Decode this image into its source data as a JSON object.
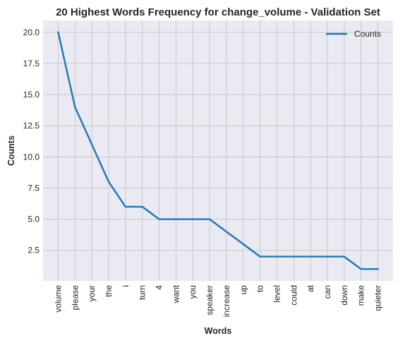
{
  "chart_data": {
    "type": "line",
    "title": "20 Highest Words Frequency for change_volume - Validation Set",
    "xlabel": "Words",
    "ylabel": "Counts",
    "categories": [
      "volume",
      "please",
      "your",
      "the",
      "i",
      "turn",
      "4",
      "want",
      "you",
      "speaker",
      "increase",
      "up",
      "to",
      "level",
      "could",
      "at",
      "can",
      "down",
      "make",
      "quieter"
    ],
    "series": [
      {
        "name": "Counts",
        "values": [
          20,
          14,
          11,
          8,
          6,
          6,
          5,
          5,
          5,
          5,
          4,
          3,
          2,
          2,
          2,
          2,
          2,
          2,
          1,
          1
        ],
        "color": "#1f77b4"
      }
    ],
    "yticks": [
      "2.5",
      "5.0",
      "7.5",
      "10.0",
      "12.5",
      "15.0",
      "17.5",
      "20.0"
    ],
    "ylim": [
      0.05,
      20.95
    ],
    "grid": true,
    "legend_position": "top-right",
    "colors": {
      "background": "#eaeaf2",
      "grid": "#c0c0c0",
      "text": "#262626"
    }
  }
}
